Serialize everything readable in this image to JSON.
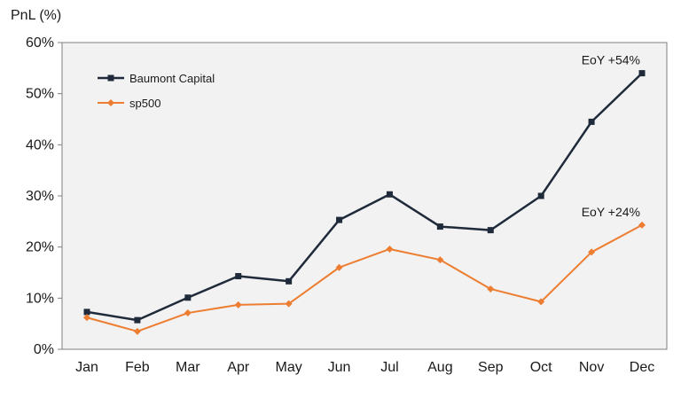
{
  "chart_data": {
    "type": "line",
    "ylabel": "PnL (%)",
    "categories": [
      "Jan",
      "Feb",
      "Mar",
      "Apr",
      "May",
      "Jun",
      "Jul",
      "Aug",
      "Sep",
      "Oct",
      "Nov",
      "Dec"
    ],
    "ylim": [
      0,
      60
    ],
    "yticks": [
      "0%",
      "10%",
      "20%",
      "30%",
      "40%",
      "50%",
      "60%"
    ],
    "grid": false,
    "legend_position": "top-left",
    "series": [
      {
        "name": "Baumont Capital",
        "color": "#1f2a3a",
        "marker": "square",
        "values": [
          7.3,
          5.7,
          10.1,
          14.3,
          13.3,
          25.3,
          30.3,
          24.0,
          23.3,
          30.0,
          44.5,
          54.0
        ]
      },
      {
        "name": "sp500",
        "color": "#ed7d31",
        "marker": "diamond",
        "values": [
          6.2,
          3.5,
          7.1,
          8.7,
          8.9,
          16.0,
          19.6,
          17.5,
          11.8,
          9.3,
          19.0,
          24.3
        ]
      }
    ],
    "annotations": [
      {
        "text": "EoY +54%",
        "series": 0,
        "index": 11
      },
      {
        "text": "EoY +24%",
        "series": 1,
        "index": 11
      }
    ]
  }
}
